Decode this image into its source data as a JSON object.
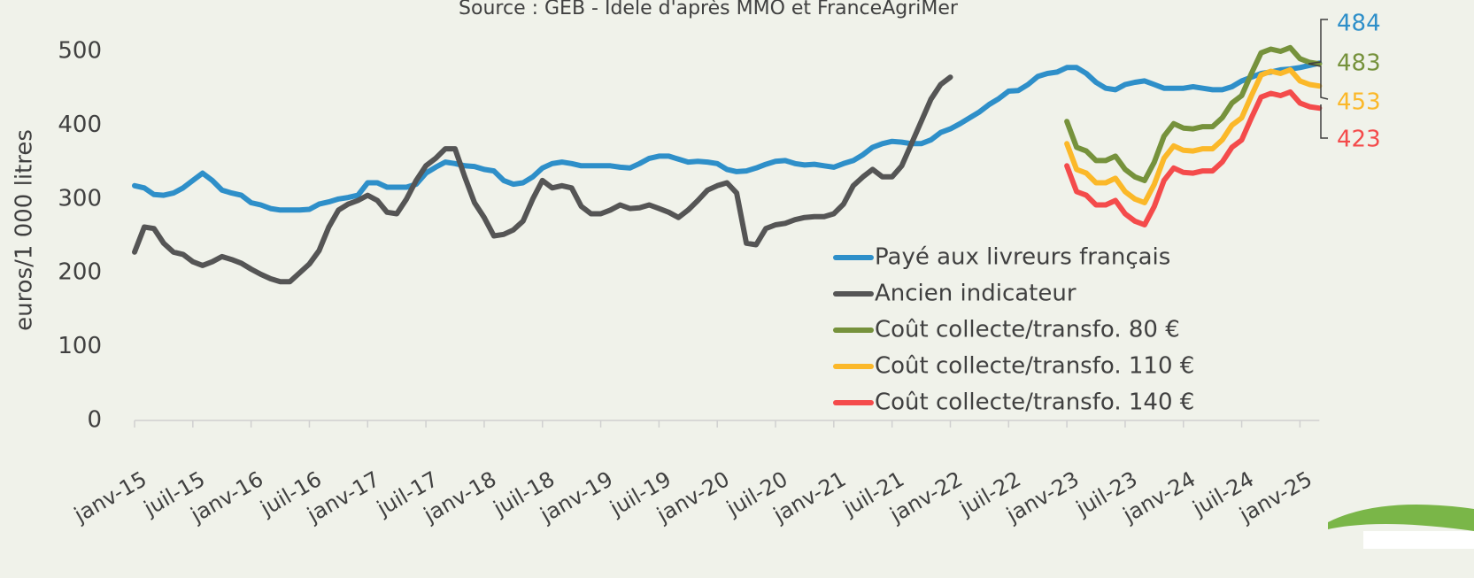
{
  "chart_data": {
    "type": "line",
    "subtitle": "Source : GEB - Idele d'après MMO  et FranceAgriMer",
    "ylabel": "euros/1 000 litres",
    "ylim": [
      0,
      520
    ],
    "yticks": [
      0,
      100,
      200,
      300,
      400,
      500
    ],
    "grid": false,
    "categories": [
      "janv-15",
      null,
      null,
      null,
      null,
      null,
      "juil-15",
      null,
      null,
      null,
      null,
      null,
      "janv-16",
      null,
      null,
      null,
      null,
      null,
      "juil-16",
      null,
      null,
      null,
      null,
      null,
      "janv-17",
      null,
      null,
      null,
      null,
      null,
      "juil-17",
      null,
      null,
      null,
      null,
      null,
      "janv-18",
      null,
      null,
      null,
      null,
      null,
      "juil-18",
      null,
      null,
      null,
      null,
      null,
      "janv-19",
      null,
      null,
      null,
      null,
      null,
      "juil-19",
      null,
      null,
      null,
      null,
      null,
      "janv-20",
      null,
      null,
      null,
      null,
      null,
      "juil-20",
      null,
      null,
      null,
      null,
      null,
      "janv-21",
      null,
      null,
      null,
      null,
      null,
      "juil-21",
      null,
      null,
      null,
      null,
      null,
      "janv-22",
      null,
      null,
      null,
      null,
      null,
      "juil-22",
      null,
      null,
      null,
      null,
      null,
      "janv-23",
      null,
      null,
      null,
      null,
      null,
      "juil-23",
      null,
      null,
      null,
      null,
      null,
      "janv-24",
      null,
      null,
      null,
      null,
      null,
      "juil-24",
      null,
      null,
      null,
      null,
      null,
      "janv-25",
      null,
      null
    ],
    "series": [
      {
        "name": "Payé aux livreurs français",
        "color": "#2e8fc9",
        "values": [
          318,
          315,
          306,
          305,
          308,
          315,
          325,
          335,
          325,
          312,
          308,
          305,
          295,
          292,
          287,
          285,
          285,
          285,
          286,
          293,
          296,
          300,
          302,
          305,
          322,
          322,
          316,
          316,
          316,
          320,
          335,
          343,
          350,
          348,
          345,
          344,
          340,
          338,
          325,
          320,
          322,
          330,
          342,
          348,
          350,
          348,
          345,
          345,
          345,
          345,
          343,
          342,
          348,
          355,
          358,
          358,
          354,
          350,
          351,
          350,
          348,
          340,
          337,
          338,
          342,
          347,
          351,
          352,
          348,
          346,
          347,
          345,
          343,
          348,
          352,
          360,
          370,
          375,
          378,
          377,
          375,
          375,
          380,
          390,
          395,
          402,
          410,
          418,
          428,
          436,
          446,
          447,
          455,
          466,
          470,
          472,
          478,
          478,
          470,
          458,
          450,
          448,
          455,
          458,
          460,
          455,
          450,
          450,
          450,
          452,
          450,
          448,
          448,
          452,
          460,
          465,
          470,
          472,
          475,
          476,
          478,
          481,
          484
        ]
      },
      {
        "name": "Ancien indicateur",
        "color": "#555555",
        "values": [
          228,
          262,
          260,
          240,
          228,
          225,
          215,
          210,
          215,
          222,
          218,
          213,
          205,
          198,
          192,
          188,
          188,
          200,
          212,
          230,
          262,
          285,
          293,
          298,
          305,
          298,
          282,
          280,
          300,
          325,
          345,
          355,
          368,
          368,
          330,
          295,
          275,
          250,
          252,
          258,
          270,
          300,
          325,
          315,
          318,
          315,
          290,
          280,
          280,
          285,
          292,
          287,
          288,
          292,
          287,
          282,
          275,
          285,
          298,
          312,
          318,
          322,
          308,
          240,
          238,
          260,
          265,
          267,
          272,
          275,
          276,
          276,
          280,
          293,
          318,
          330,
          340,
          330,
          330,
          345,
          375,
          405,
          435,
          455,
          465,
          null,
          null,
          null,
          null,
          null,
          null,
          null,
          null,
          null,
          null,
          null,
          null,
          null,
          null,
          null,
          null,
          null,
          null,
          null,
          null,
          null,
          null,
          null,
          null,
          null,
          null,
          null,
          null,
          null,
          null,
          null,
          null,
          null,
          null,
          null,
          null,
          null,
          null
        ]
      },
      {
        "name": "Coût collecte/transfo. 80 €",
        "color": "#76923c",
        "values": [
          null,
          null,
          null,
          null,
          null,
          null,
          null,
          null,
          null,
          null,
          null,
          null,
          null,
          null,
          null,
          null,
          null,
          null,
          null,
          null,
          null,
          null,
          null,
          null,
          null,
          null,
          null,
          null,
          null,
          null,
          null,
          null,
          null,
          null,
          null,
          null,
          null,
          null,
          null,
          null,
          null,
          null,
          null,
          null,
          null,
          null,
          null,
          null,
          null,
          null,
          null,
          null,
          null,
          null,
          null,
          null,
          null,
          null,
          null,
          null,
          null,
          null,
          null,
          null,
          null,
          null,
          null,
          null,
          null,
          null,
          null,
          null,
          null,
          null,
          null,
          null,
          null,
          null,
          null,
          null,
          null,
          null,
          null,
          null,
          null,
          null,
          null,
          null,
          null,
          null,
          null,
          null,
          null,
          null,
          null,
          null,
          405,
          370,
          365,
          352,
          352,
          358,
          340,
          330,
          325,
          350,
          385,
          402,
          396,
          395,
          398,
          398,
          410,
          430,
          440,
          470,
          498,
          503,
          500,
          505,
          490,
          485,
          483
        ]
      },
      {
        "name": "Coût collecte/transfo. 110 €",
        "color": "#fbb829",
        "values": [
          null,
          null,
          null,
          null,
          null,
          null,
          null,
          null,
          null,
          null,
          null,
          null,
          null,
          null,
          null,
          null,
          null,
          null,
          null,
          null,
          null,
          null,
          null,
          null,
          null,
          null,
          null,
          null,
          null,
          null,
          null,
          null,
          null,
          null,
          null,
          null,
          null,
          null,
          null,
          null,
          null,
          null,
          null,
          null,
          null,
          null,
          null,
          null,
          null,
          null,
          null,
          null,
          null,
          null,
          null,
          null,
          null,
          null,
          null,
          null,
          null,
          null,
          null,
          null,
          null,
          null,
          null,
          null,
          null,
          null,
          null,
          null,
          null,
          null,
          null,
          null,
          null,
          null,
          null,
          null,
          null,
          null,
          null,
          null,
          null,
          null,
          null,
          null,
          null,
          null,
          null,
          null,
          null,
          null,
          null,
          null,
          375,
          340,
          335,
          322,
          322,
          328,
          310,
          300,
          295,
          320,
          355,
          372,
          366,
          365,
          368,
          368,
          380,
          400,
          410,
          440,
          468,
          473,
          470,
          475,
          460,
          455,
          453
        ]
      },
      {
        "name": "Coût collecte/transfo. 140 €",
        "color": "#f44b4b",
        "values": [
          null,
          null,
          null,
          null,
          null,
          null,
          null,
          null,
          null,
          null,
          null,
          null,
          null,
          null,
          null,
          null,
          null,
          null,
          null,
          null,
          null,
          null,
          null,
          null,
          null,
          null,
          null,
          null,
          null,
          null,
          null,
          null,
          null,
          null,
          null,
          null,
          null,
          null,
          null,
          null,
          null,
          null,
          null,
          null,
          null,
          null,
          null,
          null,
          null,
          null,
          null,
          null,
          null,
          null,
          null,
          null,
          null,
          null,
          null,
          null,
          null,
          null,
          null,
          null,
          null,
          null,
          null,
          null,
          null,
          null,
          null,
          null,
          null,
          null,
          null,
          null,
          null,
          null,
          null,
          null,
          null,
          null,
          null,
          null,
          null,
          null,
          null,
          null,
          null,
          null,
          null,
          null,
          null,
          null,
          null,
          null,
          345,
          310,
          305,
          292,
          292,
          298,
          280,
          270,
          265,
          290,
          325,
          342,
          336,
          335,
          338,
          338,
          350,
          370,
          380,
          410,
          438,
          443,
          440,
          445,
          430,
          425,
          423
        ]
      }
    ]
  }
}
